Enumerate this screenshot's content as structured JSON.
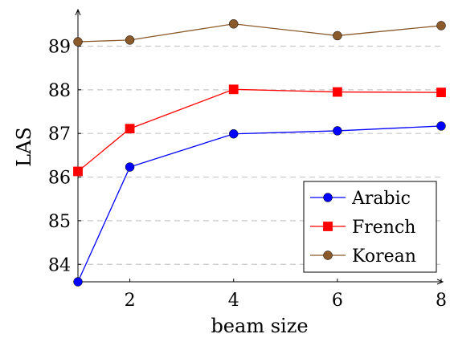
{
  "chart_data": {
    "type": "line",
    "xlabel": "beam size",
    "ylabel": "LAS",
    "x": [
      1,
      2,
      4,
      6,
      8
    ],
    "xticks": [
      2,
      4,
      6,
      8
    ],
    "yticks": [
      84,
      85,
      86,
      87,
      88,
      89
    ],
    "xlim": [
      1,
      8
    ],
    "ylim": [
      83.6,
      89.8
    ],
    "grid": "horizontal dashed",
    "legend_position": "bottom-right",
    "series": [
      {
        "name": "Arabic",
        "color": "#0000ff",
        "marker": "circle",
        "values": [
          83.6,
          86.23,
          86.99,
          87.06,
          87.17
        ]
      },
      {
        "name": "French",
        "color": "#ff0000",
        "marker": "square",
        "values": [
          86.13,
          87.11,
          88.01,
          87.95,
          87.94
        ]
      },
      {
        "name": "Korean",
        "color": "#8b5a2b",
        "marker": "circle",
        "values": [
          89.1,
          89.14,
          89.51,
          89.24,
          89.47
        ]
      }
    ]
  }
}
